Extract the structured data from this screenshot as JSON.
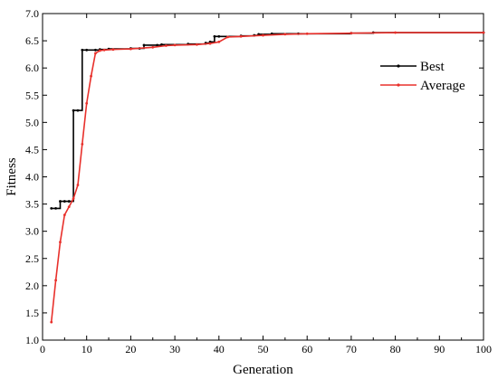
{
  "chart_data": {
    "type": "line",
    "xlabel": "Generation",
    "ylabel": "Fitness",
    "xlim": [
      0,
      100
    ],
    "ylim": [
      1.0,
      7.0
    ],
    "x_ticks": [
      0,
      10,
      20,
      30,
      40,
      50,
      60,
      70,
      80,
      90,
      100
    ],
    "y_ticks": [
      1.0,
      1.5,
      2.0,
      2.5,
      3.0,
      3.5,
      4.0,
      4.5,
      5.0,
      5.5,
      6.0,
      6.5,
      7.0
    ],
    "grid": false,
    "legend_position": "top-right",
    "series": [
      {
        "name": "Best",
        "color": "#000000",
        "step": true,
        "points": [
          [
            2,
            3.42
          ],
          [
            3,
            3.42
          ],
          [
            4,
            3.55
          ],
          [
            5,
            3.55
          ],
          [
            6,
            3.55
          ],
          [
            7,
            5.22
          ],
          [
            8,
            5.22
          ],
          [
            9,
            6.33
          ],
          [
            10,
            6.33
          ],
          [
            12,
            6.33
          ],
          [
            13,
            6.34
          ],
          [
            15,
            6.35
          ],
          [
            20,
            6.36
          ],
          [
            22,
            6.36
          ],
          [
            23,
            6.42
          ],
          [
            26,
            6.42
          ],
          [
            27,
            6.43
          ],
          [
            33,
            6.44
          ],
          [
            37,
            6.46
          ],
          [
            38,
            6.48
          ],
          [
            39,
            6.58
          ],
          [
            40,
            6.58
          ],
          [
            45,
            6.59
          ],
          [
            48,
            6.6
          ],
          [
            49,
            6.62
          ],
          [
            52,
            6.63
          ],
          [
            58,
            6.63
          ],
          [
            70,
            6.64
          ],
          [
            75,
            6.65
          ],
          [
            100,
            6.65
          ]
        ]
      },
      {
        "name": "Average",
        "color": "#e8302b",
        "step": false,
        "points": [
          [
            2,
            1.33
          ],
          [
            3,
            2.1
          ],
          [
            4,
            2.8
          ],
          [
            5,
            3.3
          ],
          [
            6,
            3.45
          ],
          [
            7,
            3.6
          ],
          [
            8,
            3.85
          ],
          [
            9,
            4.6
          ],
          [
            10,
            5.35
          ],
          [
            11,
            5.85
          ],
          [
            12,
            6.27
          ],
          [
            13,
            6.32
          ],
          [
            14,
            6.33
          ],
          [
            16,
            6.34
          ],
          [
            20,
            6.35
          ],
          [
            25,
            6.38
          ],
          [
            28,
            6.41
          ],
          [
            30,
            6.42
          ],
          [
            35,
            6.43
          ],
          [
            38,
            6.45
          ],
          [
            40,
            6.48
          ],
          [
            42,
            6.57
          ],
          [
            45,
            6.58
          ],
          [
            50,
            6.6
          ],
          [
            55,
            6.62
          ],
          [
            60,
            6.63
          ],
          [
            70,
            6.64
          ],
          [
            80,
            6.65
          ],
          [
            100,
            6.65
          ]
        ]
      }
    ]
  }
}
